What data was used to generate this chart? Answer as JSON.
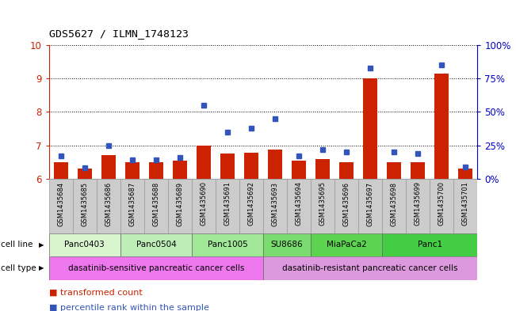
{
  "title": "GDS5627 / ILMN_1748123",
  "samples": [
    "GSM1435684",
    "GSM1435685",
    "GSM1435686",
    "GSM1435687",
    "GSM1435688",
    "GSM1435689",
    "GSM1435690",
    "GSM1435691",
    "GSM1435692",
    "GSM1435693",
    "GSM1435694",
    "GSM1435695",
    "GSM1435696",
    "GSM1435697",
    "GSM1435698",
    "GSM1435699",
    "GSM1435700",
    "GSM1435701"
  ],
  "bar_values": [
    6.5,
    6.3,
    6.7,
    6.5,
    6.5,
    6.55,
    7.0,
    6.75,
    6.78,
    6.88,
    6.55,
    6.6,
    6.5,
    9.0,
    6.5,
    6.5,
    9.15,
    6.3
  ],
  "dot_values": [
    17,
    8,
    25,
    14,
    14,
    16,
    55,
    35,
    38,
    45,
    17,
    22,
    20,
    83,
    20,
    19,
    85,
    9
  ],
  "ylim_left": [
    6,
    10
  ],
  "ylim_right": [
    0,
    100
  ],
  "yticks_left": [
    6,
    7,
    8,
    9,
    10
  ],
  "yticks_right": [
    0,
    25,
    50,
    75,
    100
  ],
  "ytick_labels_right": [
    "0%",
    "25%",
    "50%",
    "75%",
    "100%"
  ],
  "bar_color": "#cc2200",
  "dot_color": "#3355bb",
  "bar_baseline": 6.0,
  "cell_lines": [
    {
      "label": "Panc0403",
      "start": 0,
      "end": 3,
      "color": "#d8f5d0"
    },
    {
      "label": "Panc0504",
      "start": 3,
      "end": 6,
      "color": "#beedb8"
    },
    {
      "label": "Panc1005",
      "start": 6,
      "end": 9,
      "color": "#a0e898"
    },
    {
      "label": "SU8686",
      "start": 9,
      "end": 11,
      "color": "#7adc6e"
    },
    {
      "label": "MiaPaCa2",
      "start": 11,
      "end": 14,
      "color": "#5dd450"
    },
    {
      "label": "Panc1",
      "start": 14,
      "end": 18,
      "color": "#44cc44"
    }
  ],
  "cell_type_sensitive": {
    "label": "dasatinib-sensitive pancreatic cancer cells",
    "start": 0,
    "end": 9,
    "color": "#ee77ee"
  },
  "cell_type_resistant": {
    "label": "dasatinib-resistant pancreatic cancer cells",
    "start": 9,
    "end": 18,
    "color": "#dd99dd"
  },
  "xlabel_gray": "#cccccc",
  "left_tick_color": "#cc2200",
  "right_tick_color": "#0000cc",
  "legend_bar_label": "transformed count",
  "legend_dot_label": "percentile rank within the sample",
  "cell_line_label": "cell line",
  "cell_type_label": "cell type"
}
